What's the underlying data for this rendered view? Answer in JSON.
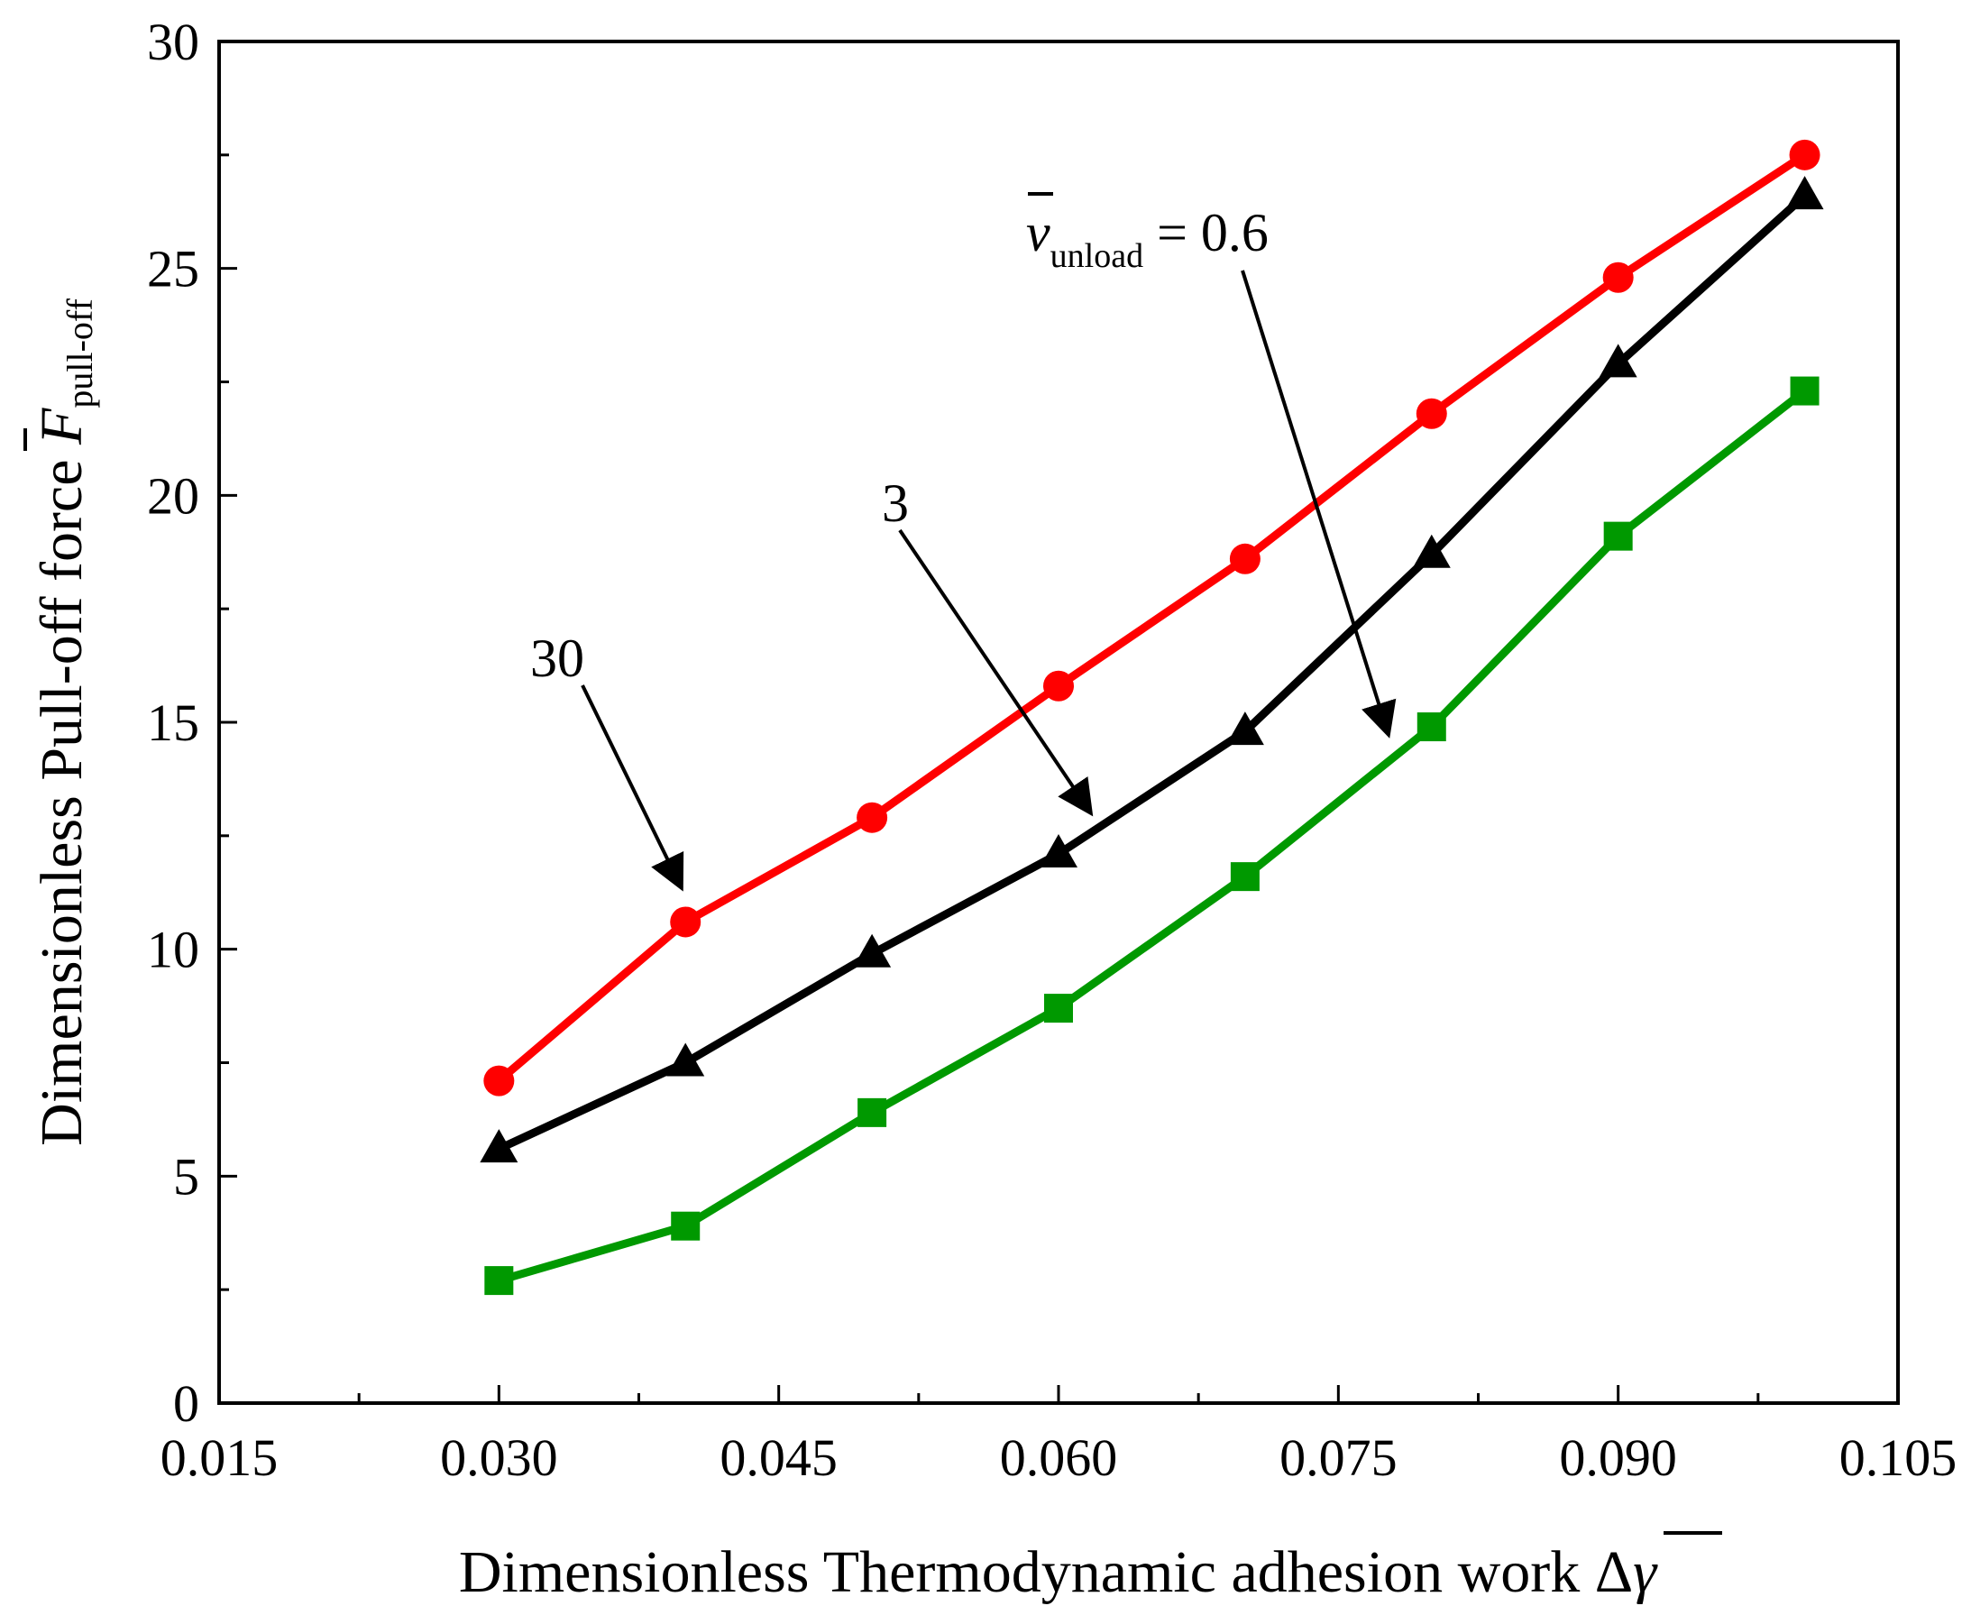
{
  "chart_data": {
    "type": "line",
    "title": "",
    "xlabel": "Dimensionless Thermodynamic adhesion work Δγ",
    "xlabel_parts": {
      "text": "Dimensionless Thermodynamic adhesion work Δ",
      "symbol": "γ"
    },
    "ylabel": "Dimensionless Pull-off force F pull-off",
    "ylabel_parts": {
      "text": "Dimensionless Pull-off force ",
      "symbol": "F",
      "subscript": "pull-off"
    },
    "xlim": [
      0.015,
      0.105
    ],
    "ylim": [
      0,
      30
    ],
    "xticks": [
      "0.015",
      "0.030",
      "0.045",
      "0.060",
      "0.075",
      "0.090",
      "0.105"
    ],
    "yticks": [
      "0",
      "5",
      "10",
      "15",
      "20",
      "25",
      "30"
    ],
    "grid": false,
    "x": [
      0.03,
      0.04,
      0.05,
      0.06,
      0.07,
      0.08,
      0.09,
      0.1
    ],
    "series": [
      {
        "name": "30",
        "color": "#ff0000",
        "marker": "circle",
        "values": [
          7.1,
          10.6,
          12.9,
          15.8,
          18.6,
          21.8,
          24.8,
          27.5
        ]
      },
      {
        "name": "3",
        "color": "#000000",
        "marker": "triangle",
        "values": [
          5.6,
          7.5,
          9.9,
          12.1,
          14.8,
          18.7,
          22.9,
          26.6
        ]
      },
      {
        "name": "0.6",
        "color": "#009900",
        "marker": "square",
        "values": [
          2.7,
          3.9,
          6.4,
          8.7,
          11.6,
          14.9,
          19.1,
          22.3
        ]
      }
    ],
    "annotations": [
      {
        "label": "30",
        "target_series": "30"
      },
      {
        "label": "3",
        "target_series": "3"
      },
      {
        "label_prefix": "v",
        "label_subscript": "unload",
        "label_suffix": " = 0.6",
        "target_series": "0.6"
      }
    ]
  }
}
